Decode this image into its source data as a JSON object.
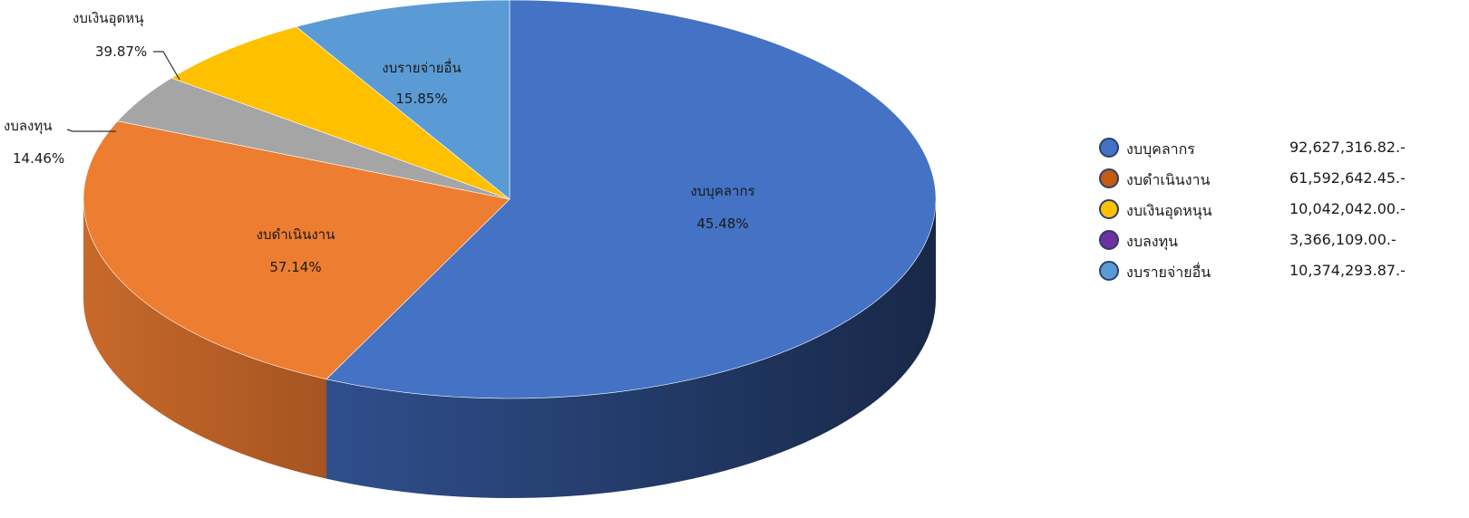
{
  "chart_data": {
    "type": "pie",
    "title": "",
    "slices": [
      {
        "name": "งบบุคลากร",
        "label": "45.48%",
        "share": 0.5707,
        "color": "#4472C4",
        "amount": "92,627,316.82.-",
        "legend_color": "#4472C4"
      },
      {
        "name": "งบดำเนินงาน",
        "label": "57.14%",
        "share": 0.2435,
        "color": "#ED7D31",
        "amount": "61,592,642.45.-",
        "legend_color": "#C55A11"
      },
      {
        "name": "งบลงทุน",
        "label": "14.46%",
        "share": 0.0399,
        "color": "#A5A5A5",
        "amount": "3,366,109.00.-",
        "legend_color": "#7030A0"
      },
      {
        "name": "งบเงินอุดหนุ",
        "label": "39.87%",
        "share": 0.0625,
        "color": "#FFC000",
        "amount": "10,042,042.00.-",
        "legend_color": "#FFC000"
      },
      {
        "name": "งบรายจ่ายอื่น",
        "label": "15.85%",
        "share": 0.0834,
        "color": "#5B9BD5",
        "amount": "10,374,293.87.-",
        "legend_color": "#5B9BD5"
      }
    ]
  },
  "legend": {
    "items": [
      {
        "name": "งบบุคลากร",
        "amount": "92,627,316.82.-",
        "color": "#4472C4"
      },
      {
        "name": "งบดำเนินงาน",
        "amount": "61,592,642.45.-",
        "color": "#C55A11"
      },
      {
        "name": "งบเงินอุดหนุน",
        "amount": "10,042,042.00.-",
        "color": "#FFC000"
      },
      {
        "name": "งบลงทุน",
        "amount": "3,366,109.00.-",
        "color": "#7030A0"
      },
      {
        "name": "งบรายจ่ายอื่น",
        "amount": "10,374,293.87.-",
        "color": "#5B9BD5"
      }
    ]
  }
}
